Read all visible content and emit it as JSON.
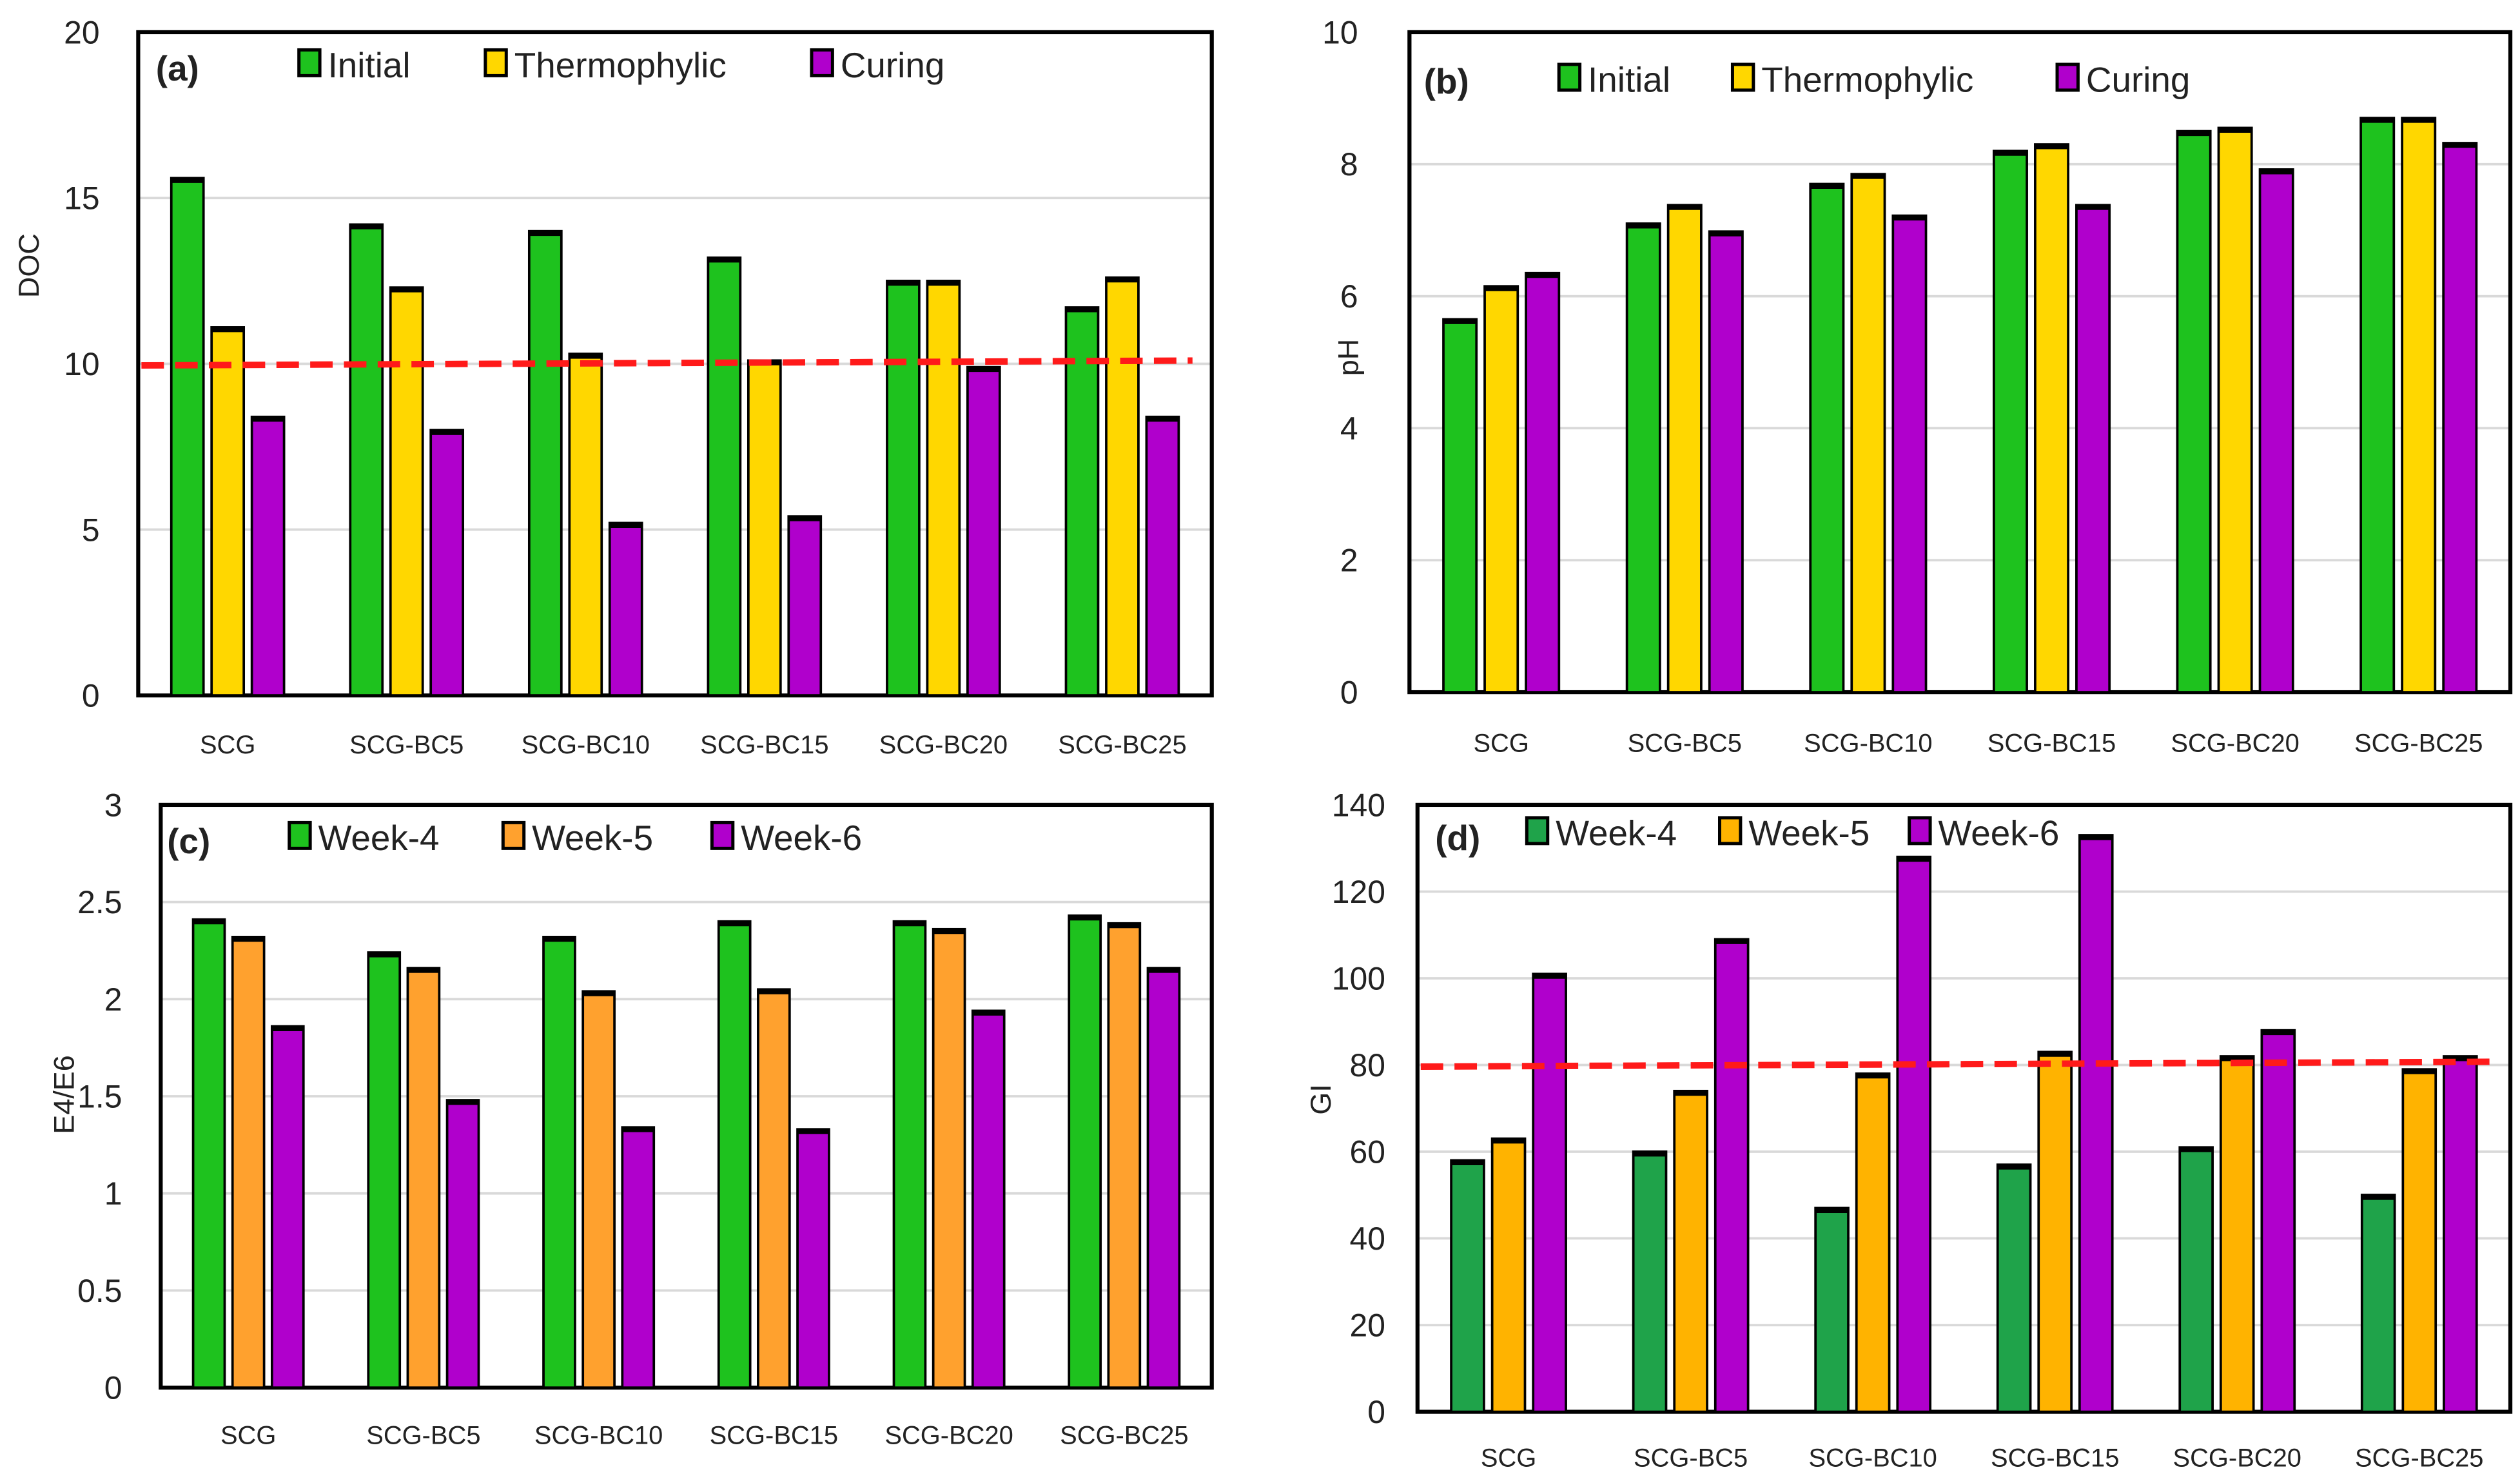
{
  "colors": {
    "green": "#1ec21e",
    "yellow": "#ffd700",
    "purple": "#b000cc",
    "orange": "#ffa12e",
    "dark_green": "#1fa34a",
    "threshold": "#ff1a1a"
  },
  "chart_data": [
    {
      "type": "bar",
      "panel": "(a)",
      "ylabel": "DOC",
      "ylim": [
        0,
        20
      ],
      "yticks": [
        0,
        5,
        10,
        15,
        20
      ],
      "categories": [
        "SCG",
        "SCG-BC5",
        "SCG-BC10",
        "SCG-BC15",
        "SCG-BC20",
        "SCG-BC25"
      ],
      "series": [
        {
          "name": "Initial",
          "color": "#1ec21e",
          "values": [
            15.6,
            14.2,
            14.0,
            13.2,
            12.5,
            11.7
          ]
        },
        {
          "name": "Thermophylic",
          "color": "#ffd700",
          "values": [
            11.1,
            12.3,
            10.3,
            10.1,
            12.5,
            12.6
          ]
        },
        {
          "name": "Curing",
          "color": "#b000cc",
          "values": [
            8.4,
            8.0,
            5.2,
            5.4,
            9.9,
            8.4
          ]
        }
      ],
      "threshold": 10,
      "grid": true,
      "legend": "top"
    },
    {
      "type": "bar",
      "panel": "(b)",
      "ylabel": "pH",
      "ylim": [
        0,
        10
      ],
      "yticks": [
        0,
        2,
        4,
        6,
        8,
        10
      ],
      "categories": [
        "SCG",
        "SCG-BC5",
        "SCG-BC10",
        "SCG-BC15",
        "SCG-BC20",
        "SCG-BC25"
      ],
      "series": [
        {
          "name": "Initial",
          "color": "#1ec21e",
          "values": [
            5.65,
            7.1,
            7.7,
            8.2,
            8.5,
            8.7
          ]
        },
        {
          "name": "Thermophylic",
          "color": "#ffd700",
          "values": [
            6.15,
            7.38,
            7.85,
            8.3,
            8.55,
            8.7
          ]
        },
        {
          "name": "Curing",
          "color": "#b000cc",
          "values": [
            6.35,
            6.98,
            7.22,
            7.38,
            7.92,
            8.32
          ]
        }
      ],
      "threshold": null,
      "grid": true,
      "legend": "top"
    },
    {
      "type": "bar",
      "panel": "(c)",
      "ylabel": "E4/E6",
      "ylim": [
        0,
        3
      ],
      "yticks": [
        0,
        0.5,
        1,
        1.5,
        2,
        2.5,
        3
      ],
      "categories": [
        "SCG",
        "SCG-BC5",
        "SCG-BC10",
        "SCG-BC15",
        "SCG-BC20",
        "SCG-BC25"
      ],
      "series": [
        {
          "name": "Week-4",
          "color": "#1ec21e",
          "values": [
            2.41,
            2.24,
            2.32,
            2.4,
            2.4,
            2.43
          ]
        },
        {
          "name": "Week-5",
          "color": "#ffa12e",
          "values": [
            2.32,
            2.16,
            2.04,
            2.05,
            2.36,
            2.39
          ]
        },
        {
          "name": "Week-6",
          "color": "#b000cc",
          "values": [
            1.86,
            1.48,
            1.34,
            1.33,
            1.94,
            2.16
          ]
        }
      ],
      "threshold": null,
      "grid": true,
      "legend": "top"
    },
    {
      "type": "bar",
      "panel": "(d)",
      "ylabel": "GI",
      "ylim": [
        0,
        140
      ],
      "yticks": [
        0,
        20,
        40,
        60,
        80,
        100,
        120,
        140
      ],
      "categories": [
        "SCG",
        "SCG-BC5",
        "SCG-BC10",
        "SCG-BC15",
        "SCG-BC20",
        "SCG-BC25"
      ],
      "series": [
        {
          "name": "Week-4",
          "color": "#1fa34a",
          "values": [
            58,
            60,
            47,
            57,
            61,
            50
          ]
        },
        {
          "name": "Week-5",
          "color": "#ffb300",
          "values": [
            63,
            74,
            78,
            83,
            82,
            79
          ]
        },
        {
          "name": "Week-6",
          "color": "#b000cc",
          "values": [
            101,
            109,
            128,
            133,
            88,
            82
          ]
        }
      ],
      "threshold": 80,
      "grid": true,
      "legend": "top"
    }
  ]
}
